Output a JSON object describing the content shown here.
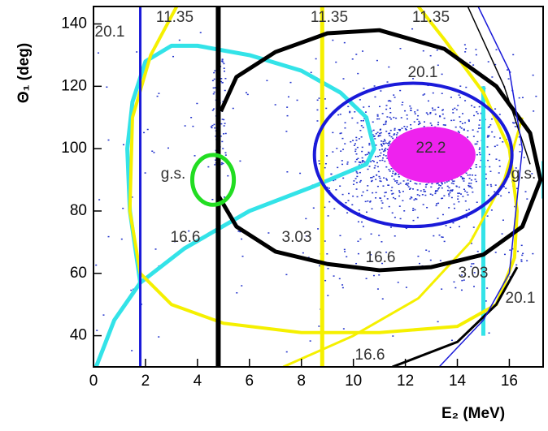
{
  "chart_data": {
    "type": "line",
    "y_label": "Θ₁  (deg)",
    "x_label": "E₂  (MeV)",
    "xlim": [
      0,
      17.3
    ],
    "ylim": [
      30,
      145.6
    ],
    "xticks": [
      0,
      2,
      4,
      6,
      8,
      10,
      12,
      14,
      16
    ],
    "yticks": [
      40,
      60,
      80,
      100,
      120,
      140
    ],
    "series": [
      {
        "color": "#33e3e8",
        "width": 5,
        "x": [
          0.1,
          0.8,
          1.8,
          3.5,
          6,
          8.5,
          10.5,
          10.8,
          10.5,
          9.5,
          8,
          6,
          4,
          3,
          2,
          1.5,
          1.3,
          1.4,
          1.8
        ],
        "y": [
          30,
          45,
          57,
          68,
          80,
          88,
          95,
          100,
          110,
          118,
          125,
          130,
          133,
          133,
          128,
          115,
          100,
          80,
          57
        ]
      },
      {
        "color": "#33e3e8",
        "width": 5,
        "x": [
          15,
          15
        ],
        "y": [
          40,
          120
        ]
      },
      {
        "color": "#33e3e8",
        "width": 4,
        "x": [
          17.3,
          17.3
        ],
        "y": [
          84,
          96
        ]
      },
      {
        "color": "#f5f000",
        "width": 4,
        "x": [
          3.2,
          2.2,
          1.5,
          1.4,
          1.8,
          3,
          5,
          8,
          11,
          14,
          15.5,
          16.2,
          16.3,
          16,
          15,
          13.5,
          12.5
        ],
        "y": [
          145.6,
          130,
          110,
          80,
          60,
          50,
          44,
          41,
          41,
          43,
          50,
          65,
          80,
          100,
          118,
          135,
          145.6
        ]
      },
      {
        "color": "#f5f000",
        "width": 3,
        "x": [
          7.3,
          10,
          12.5,
          14.5,
          15.8,
          16.5
        ],
        "y": [
          30,
          40,
          52,
          70,
          90,
          110
        ]
      },
      {
        "color": "#f5f000",
        "width": 5,
        "x": [
          8.8,
          8.8
        ],
        "y": [
          30,
          145.6
        ]
      },
      {
        "color": "#000000",
        "width": 6,
        "x": [
          4.8,
          4.8
        ],
        "y": [
          30,
          145.6
        ]
      },
      {
        "color": "#000000",
        "width": 5,
        "x": [
          4.8,
          5.5,
          7,
          9,
          11,
          13,
          15,
          16.5,
          17.2,
          16.8,
          15.5,
          13.5,
          11,
          9,
          7,
          5.5,
          4.9
        ],
        "y": [
          85,
          75,
          67,
          63,
          61,
          62,
          66,
          75,
          90,
          105,
          120,
          132,
          138,
          137,
          131,
          123,
          112
        ]
      },
      {
        "color": "#000000",
        "width": 3,
        "x": [
          11.5,
          14,
          15.5,
          16.3
        ],
        "y": [
          30,
          38,
          50,
          62
        ]
      },
      {
        "color": "#000000",
        "width": 1.5,
        "x": [
          14.4,
          15.8,
          16.8
        ],
        "y": [
          145.6,
          120,
          95
        ]
      },
      {
        "color": "#1a1ad9",
        "width": 3,
        "x": [
          1.8,
          1.8
        ],
        "y": [
          30,
          145.6
        ]
      },
      {
        "color": "#1a1ad9",
        "width": 1.5,
        "x": [
          13.3,
          15,
          16,
          16.5,
          16,
          14.8
        ],
        "y": [
          30,
          45,
          60,
          100,
          125,
          145.6
        ]
      }
    ],
    "ellipses": [
      {
        "color": "#1a1ad9",
        "fill": false,
        "width": 4,
        "cx": 12.3,
        "cy": 98,
        "rx": 3.8,
        "ry": 23
      },
      {
        "color": "#22dd22",
        "fill": false,
        "width": 5,
        "cx": 4.6,
        "cy": 90,
        "rx": 0.8,
        "ry": 8
      },
      {
        "color": "#ee22ee",
        "fill": true,
        "width": 0,
        "cx": 13,
        "cy": 98,
        "rx": 1.7,
        "ry": 9
      }
    ],
    "annotations": [
      "20.1",
      "11.35",
      "11.35",
      "11.35",
      "20.1",
      "22.2",
      "g.s.",
      "g.s.",
      "16.6",
      "3.03",
      "16.6",
      "3.03",
      "20.1",
      "16.6"
    ]
  }
}
